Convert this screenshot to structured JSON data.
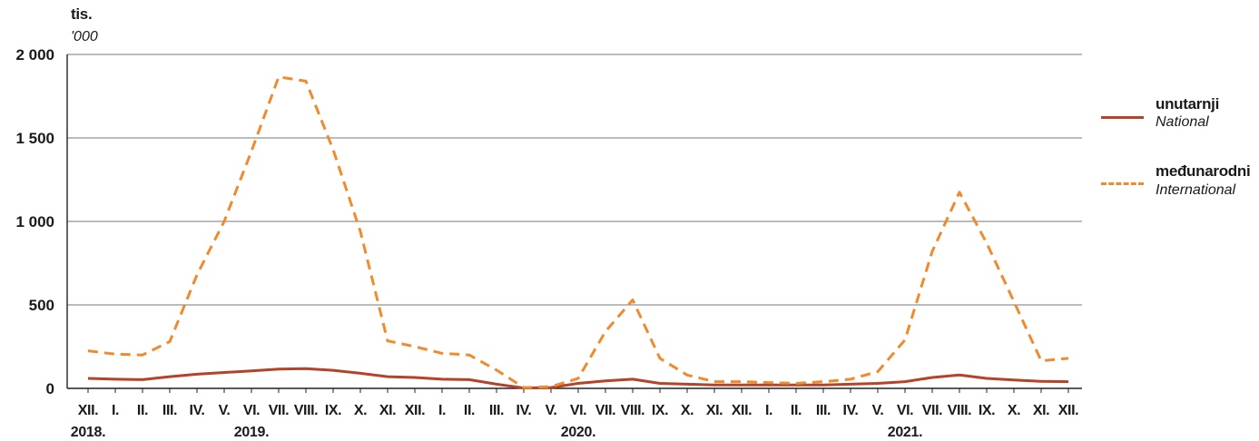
{
  "chart_data": {
    "type": "line",
    "y_unit_label": "tis.",
    "y_unit_label_en": "'000",
    "ylim": [
      0,
      2000
    ],
    "yticks": [
      0,
      500,
      1000,
      1500,
      2000
    ],
    "ytick_labels": [
      "0",
      "500",
      "1 000",
      "1 500",
      "2 000"
    ],
    "grid": true,
    "legend_position": "right",
    "categories": [
      "XII.",
      "I.",
      "II.",
      "III.",
      "IV.",
      "V.",
      "VI.",
      "VII.",
      "VIII.",
      "IX.",
      "X.",
      "XI.",
      "XII.",
      "I.",
      "II.",
      "III.",
      "IV.",
      "V.",
      "VI.",
      "VII.",
      "VIII.",
      "IX.",
      "X.",
      "XI.",
      "XII.",
      "I.",
      "II.",
      "III.",
      "IV.",
      "V.",
      "VI.",
      "VII.",
      "VIII.",
      "IX.",
      "X.",
      "XI.",
      "XII."
    ],
    "year_labels": [
      {
        "label": "2018.",
        "at_index": 0
      },
      {
        "label": "2019.",
        "at_index": 6
      },
      {
        "label": "2020.",
        "at_index": 18
      },
      {
        "label": "2021.",
        "at_index": 30
      }
    ],
    "series": [
      {
        "name": "unutarnji",
        "name_en": "National",
        "color": "#b5432a",
        "style": "solid",
        "values": [
          60,
          55,
          52,
          70,
          85,
          95,
          105,
          115,
          118,
          108,
          90,
          70,
          65,
          55,
          52,
          25,
          2,
          5,
          30,
          45,
          55,
          30,
          25,
          20,
          20,
          20,
          20,
          20,
          25,
          30,
          40,
          65,
          80,
          60,
          50,
          42,
          40
        ]
      },
      {
        "name": "međunarodni",
        "name_en": "International",
        "color": "#ef8a2f",
        "style": "dashed",
        "values": [
          225,
          205,
          200,
          280,
          680,
          1000,
          1420,
          1865,
          1840,
          1430,
          940,
          285,
          250,
          210,
          200,
          110,
          5,
          10,
          60,
          340,
          530,
          180,
          80,
          40,
          40,
          35,
          30,
          40,
          55,
          100,
          290,
          820,
          1175,
          870,
          520,
          165,
          180
        ]
      }
    ]
  }
}
